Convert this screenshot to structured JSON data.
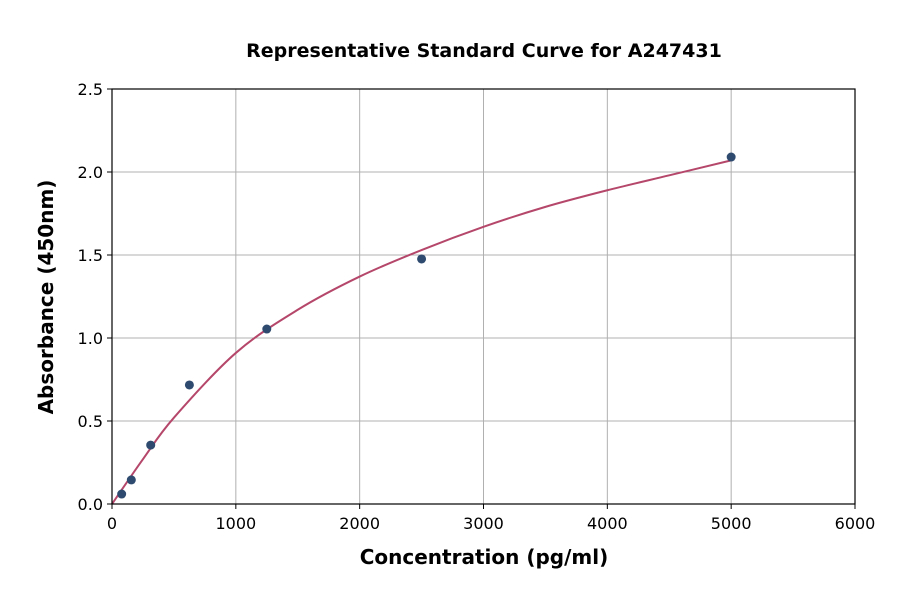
{
  "chart_data": {
    "type": "scatter",
    "title": "Representative Standard Curve for A247431",
    "xlabel": "Concentration (pg/ml)",
    "ylabel": "Absorbance (450nm)",
    "xlim": [
      0,
      6000
    ],
    "ylim": [
      0,
      2.5
    ],
    "xticks": [
      0,
      1000,
      2000,
      3000,
      4000,
      5000,
      6000
    ],
    "yticks": [
      "0.0",
      "0.5",
      "1.0",
      "1.5",
      "2.0",
      "2.5"
    ],
    "grid": true,
    "points": {
      "x": [
        78.125,
        156.25,
        312.5,
        625,
        1250,
        2500,
        5000
      ],
      "y": [
        0.06,
        0.145,
        0.355,
        0.717,
        1.054,
        1.476,
        2.09
      ],
      "color": "#2e4a6e"
    },
    "fit_curve": {
      "x": [
        0,
        250,
        500,
        1000,
        1500,
        2000,
        2500,
        3000,
        3500,
        4000,
        4500,
        5000
      ],
      "y": [
        0,
        0.27,
        0.52,
        0.91,
        1.17,
        1.37,
        1.53,
        1.67,
        1.79,
        1.89,
        1.98,
        2.07
      ],
      "color": "#b5476b"
    }
  }
}
